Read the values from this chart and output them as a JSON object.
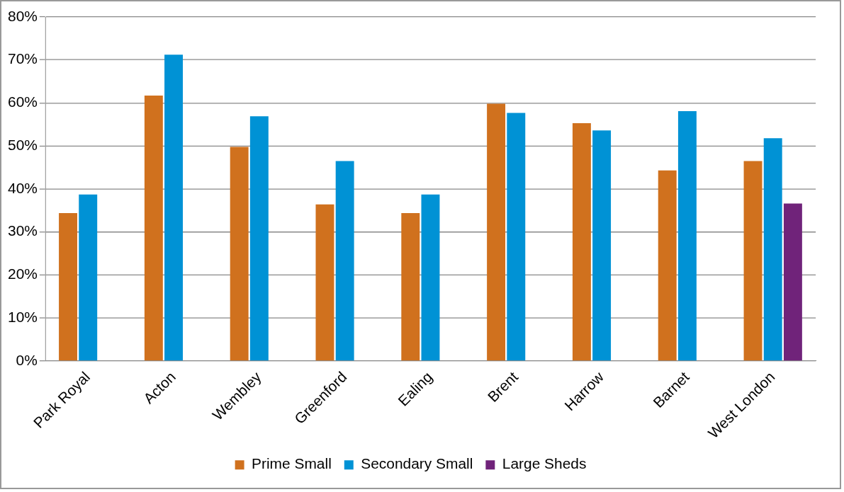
{
  "chart_data": {
    "type": "bar",
    "categories": [
      "Park Royal",
      "Acton",
      "Wembley",
      "Greenford",
      "Ealing",
      "Brent",
      "Harrow",
      "Barnet",
      "West London"
    ],
    "series": [
      {
        "name": "Prime Small",
        "color": "#d0711e",
        "values": [
          34.4,
          61.7,
          49.8,
          36.4,
          34.4,
          59.8,
          55.3,
          44.3,
          46.5
        ]
      },
      {
        "name": "Secondary Small",
        "color": "#0092d5",
        "values": [
          38.7,
          71.2,
          56.9,
          46.5,
          38.7,
          57.7,
          53.6,
          58.1,
          51.8
        ]
      },
      {
        "name": "Large Sheds",
        "color": "#70237a",
        "values": [
          null,
          null,
          null,
          null,
          null,
          null,
          null,
          null,
          36.6
        ]
      }
    ],
    "ylim": [
      0,
      80
    ],
    "yticks": [
      {
        "value": 0,
        "label": "0%"
      },
      {
        "value": 10,
        "label": "10%"
      },
      {
        "value": 20,
        "label": "20%"
      },
      {
        "value": 30,
        "label": "30%"
      },
      {
        "value": 40,
        "label": "40%"
      },
      {
        "value": 50,
        "label": "50%"
      },
      {
        "value": 60,
        "label": "60%"
      },
      {
        "value": 70,
        "label": "70%"
      },
      {
        "value": 80,
        "label": "80%"
      }
    ],
    "grid": "y",
    "legend": "bottom"
  }
}
